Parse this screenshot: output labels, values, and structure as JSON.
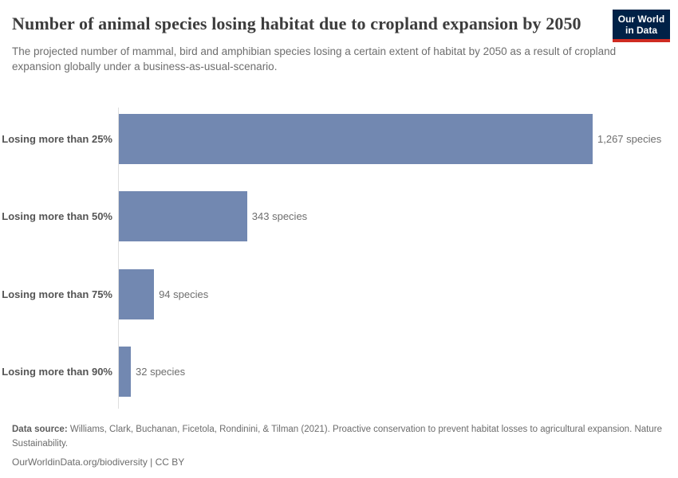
{
  "page": {
    "title": "Number of animal species losing habitat due to cropland expansion by 2050",
    "subtitle": "The projected number of mammal, bird and amphibian species losing a certain extent of habitat by 2050 as a result of cropland expansion globally under a business-as-usual-scenario.",
    "logo": {
      "line1": "Our World",
      "line2": "in Data",
      "bg_color": "#002147",
      "stripe_color": "#cf2b22"
    }
  },
  "chart_data": {
    "type": "bar",
    "orientation": "horizontal",
    "title": "Number of animal species losing habitat due to cropland expansion by 2050",
    "categories": [
      "Losing more than 25%",
      "Losing more than 50%",
      "Losing more than 75%",
      "Losing more than 90%"
    ],
    "values": [
      1267,
      343,
      94,
      32
    ],
    "rows": [
      {
        "label": "Losing more than 25%",
        "value": 1267,
        "value_label": "1,267 species"
      },
      {
        "label": "Losing more than 50%",
        "value": 343,
        "value_label": "343 species"
      },
      {
        "label": "Losing more than 75%",
        "value": 94,
        "value_label": "94 species"
      },
      {
        "label": "Losing more than 90%",
        "value": 32,
        "value_label": "32 species"
      }
    ],
    "xlim": [
      0,
      1267
    ],
    "xlabel": "",
    "ylabel": "",
    "grid": false,
    "legend": "none",
    "bar_color": "#7288b1",
    "axis_color": "#dedede"
  },
  "footer": {
    "source_label": "Data source:",
    "source_text": " Williams, Clark, Buchanan, Ficetola, Rondinini, & Tilman (2021). Proactive conservation to prevent habitat losses to agricultural expansion. Nature Sustainability.",
    "link_text": "OurWorldinData.org/biodiversity | CC BY"
  }
}
